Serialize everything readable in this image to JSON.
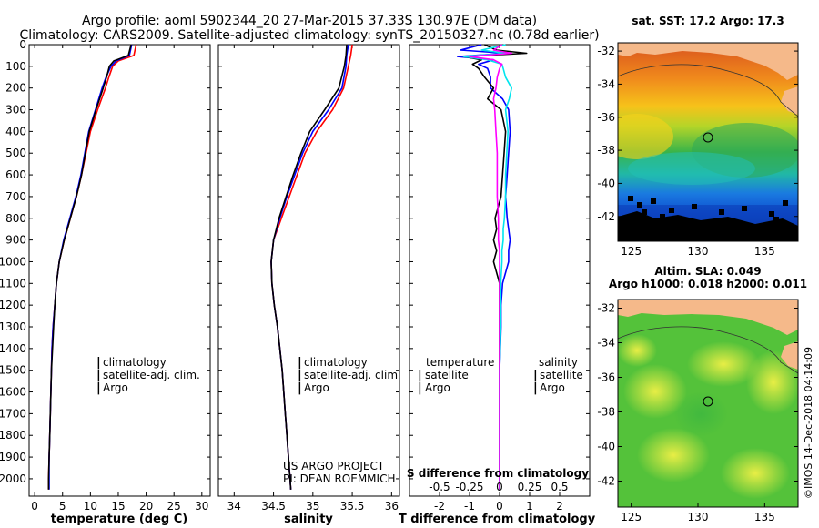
{
  "titles": {
    "line1": "Argo profile: aoml 5902344_20 27-Mar-2015 37.33S 130.97E (DM data)",
    "line2": "Climatology: CARS2009. Satellite-adjusted climatology: synTS_20150327.nc (0.78d earlier)"
  },
  "colors": {
    "climatology": "#ff0000",
    "satellite": "#0000ff",
    "argo": "#000000",
    "sat_salinity": "#00e5ee",
    "argo_salinity": "#ff00ff"
  },
  "depth_ticks": [
    "0",
    "100",
    "200",
    "300",
    "400",
    "500",
    "600",
    "700",
    "800",
    "900",
    "1000",
    "1100",
    "1200",
    "1300",
    "1400",
    "1500",
    "1600",
    "1700",
    "1800",
    "1900",
    "2000"
  ],
  "chart_data": [
    {
      "type": "line",
      "title": "",
      "xlabel": "temperature (deg C)",
      "ylabel": "",
      "xlim": [
        -1,
        31.5
      ],
      "ylim": [
        2080,
        0
      ],
      "xticks": [
        "0",
        "5",
        "10",
        "15",
        "20",
        "25",
        "30"
      ],
      "legend": [
        "climatology",
        "satellite-adj. clim.",
        "Argo"
      ],
      "depth": [
        0,
        50,
        75,
        100,
        150,
        200,
        300,
        400,
        500,
        600,
        700,
        800,
        900,
        1000,
        1100,
        1200,
        1300,
        1400,
        1500,
        1600,
        1700,
        1800,
        1900,
        2000,
        2050
      ],
      "series": [
        {
          "name": "climatology",
          "values": [
            18.2,
            17.8,
            15.0,
            14.0,
            13.3,
            12.7,
            11.3,
            10.0,
            9.2,
            8.4,
            7.5,
            6.4,
            5.3,
            4.4,
            3.9,
            3.6,
            3.3,
            3.1,
            3.0,
            2.9,
            2.8,
            2.7,
            2.6,
            2.5,
            2.5
          ]
        },
        {
          "name": "satellite-adj. clim.",
          "values": [
            17.4,
            17.0,
            14.6,
            13.7,
            12.8,
            12.1,
            10.9,
            9.7,
            9.0,
            8.3,
            7.4,
            6.3,
            5.2,
            4.4,
            3.9,
            3.6,
            3.3,
            3.1,
            3.0,
            2.9,
            2.8,
            2.7,
            2.6,
            2.6,
            2.6
          ]
        },
        {
          "name": "Argo",
          "values": [
            17.3,
            16.8,
            14.2,
            13.4,
            12.9,
            12.3,
            11.0,
            9.8,
            9.1,
            8.4,
            7.5,
            6.4,
            5.3,
            4.4,
            3.9,
            3.6,
            3.4,
            3.2,
            3.0,
            2.9,
            2.8,
            2.7,
            2.6,
            2.5,
            2.5
          ]
        }
      ]
    },
    {
      "type": "line",
      "title": "",
      "xlabel": "salinity",
      "ylabel": "",
      "xlim": [
        33.8,
        36.1
      ],
      "ylim": [
        2080,
        0
      ],
      "xticks": [
        "34",
        "34.5",
        "35",
        "35.5",
        "36"
      ],
      "legend": [
        "climatology",
        "satellite-adj. clim.",
        "Argo"
      ],
      "depth": [
        0,
        50,
        100,
        200,
        300,
        400,
        500,
        600,
        700,
        800,
        900,
        1000,
        1100,
        1200,
        1300,
        1400,
        1500,
        1600,
        1700,
        1800,
        1900,
        2000,
        2050
      ],
      "series": [
        {
          "name": "climatology",
          "values": [
            35.5,
            35.48,
            35.45,
            35.39,
            35.25,
            35.05,
            34.9,
            34.8,
            34.7,
            34.6,
            34.5,
            34.47,
            34.48,
            34.51,
            34.55,
            34.58,
            34.61,
            34.63,
            34.65,
            34.67,
            34.69,
            34.71,
            34.72
          ]
        },
        {
          "name": "satellite-adj. clim.",
          "values": [
            35.45,
            35.43,
            35.42,
            35.37,
            35.2,
            35.0,
            34.87,
            34.77,
            34.67,
            34.58,
            34.5,
            34.47,
            34.48,
            34.51,
            34.55,
            34.58,
            34.61,
            34.63,
            34.65,
            34.67,
            34.69,
            34.71,
            34.72
          ]
        },
        {
          "name": "Argo",
          "values": [
            35.43,
            35.42,
            35.4,
            35.33,
            35.15,
            34.96,
            34.85,
            34.75,
            34.66,
            34.57,
            34.5,
            34.47,
            34.48,
            34.51,
            34.55,
            34.58,
            34.61,
            34.63,
            34.65,
            34.67,
            34.69,
            34.71,
            34.72
          ]
        }
      ]
    },
    {
      "type": "line",
      "title": "",
      "xlabel": "T difference from climatology",
      "ylabel": "",
      "xlim": [
        -3,
        3
      ],
      "ylim": [
        2080,
        0
      ],
      "xticks": [
        "-2",
        "-1",
        "0",
        "1",
        "2"
      ],
      "secondary_xlabel": "S difference from climatology",
      "secondary_xticks": [
        "-0.5",
        "-0.25",
        "0",
        "0.25",
        "0.5"
      ],
      "legend_temperature_header": "temperature",
      "legend_salinity_header": "salinity",
      "legend_temperature": [
        "satellite",
        "Argo"
      ],
      "legend_salinity": [
        "satellite",
        "Argo"
      ],
      "depth": [
        0,
        25,
        40,
        55,
        70,
        90,
        110,
        150,
        200,
        250,
        300,
        400,
        500,
        600,
        700,
        800,
        850,
        900,
        950,
        1000,
        1100,
        1200,
        1300,
        1500,
        1700,
        1900,
        2050
      ],
      "series": [
        {
          "name": "T satellite",
          "values": [
            -0.6,
            -1.3,
            0.2,
            -1.4,
            -0.2,
            -0.7,
            -0.4,
            -0.3,
            -0.3,
            0.1,
            0.3,
            0.35,
            0.3,
            0.25,
            0.2,
            0.25,
            0.3,
            0.35,
            0.3,
            0.3,
            0.1,
            0.05,
            0.05,
            0,
            0,
            0,
            0
          ]
        },
        {
          "name": "T Argo",
          "values": [
            -0.5,
            -0.1,
            0.9,
            -1.2,
            -0.6,
            -0.9,
            -0.7,
            -0.5,
            -0.2,
            -0.4,
            0.05,
            0.2,
            0.15,
            0.1,
            0.05,
            -0.15,
            -0.1,
            -0.2,
            -0.1,
            -0.2,
            0,
            0,
            0,
            0,
            0,
            0,
            0
          ]
        },
        {
          "name": "S satellite",
          "values": [
            0.05,
            -0.15,
            0.05,
            -0.3,
            -0.1,
            0.02,
            0.03,
            0.05,
            0.1,
            0.08,
            0.05,
            0.07,
            0.06,
            0.05,
            0.05,
            0.04,
            0.03,
            0.03,
            0.02,
            0.02,
            0.01,
            0.01,
            0.01,
            0,
            0,
            0,
            0
          ]
        },
        {
          "name": "S Argo",
          "values": [
            0.02,
            -0.05,
            0.1,
            -0.25,
            -0.05,
            0.02,
            0,
            -0.02,
            -0.03,
            -0.05,
            -0.04,
            -0.03,
            -0.02,
            -0.02,
            -0.02,
            -0.01,
            -0.01,
            -0.01,
            0,
            0,
            0,
            0,
            0,
            0,
            0,
            0,
            0
          ]
        }
      ]
    }
  ],
  "watermark": {
    "line1": "US ARGO PROJECT",
    "line2": "PI: DEAN ROEMMICH"
  },
  "map_sst": {
    "title": "sat. SST: 17.2 Argo: 17.3",
    "yticks": [
      "-32",
      "-34",
      "-36",
      "-38",
      "-40",
      "-42"
    ],
    "xticks": [
      "125",
      "130",
      "135"
    ],
    "lon_range": [
      124,
      137.5
    ],
    "lat_range": [
      -43.5,
      -31.5
    ],
    "marker": {
      "lon": 130.97,
      "lat": -37.33
    }
  },
  "map_sla": {
    "title1": "Altim. SLA: 0.049",
    "title2": "Argo h1000: 0.018 h2000: 0.011",
    "yticks": [
      "-32",
      "-34",
      "-36",
      "-38",
      "-40",
      "-42"
    ],
    "xticks": [
      "125",
      "130",
      "135"
    ],
    "lon_range": [
      124,
      137.5
    ],
    "lat_range": [
      -43.5,
      -31.5
    ],
    "marker": {
      "lon": 130.97,
      "lat": -37.33
    }
  },
  "credit": "©IMOS 14-Dec-2018 04:14:09"
}
